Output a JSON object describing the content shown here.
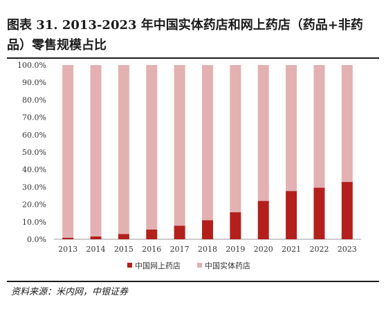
{
  "page": {
    "title": "图表 31. 2013-2023 年中国实体药店和网上药店（药品+非药品）零售规模占比",
    "source": "资料来源：米内网，中银证券"
  },
  "chart_data": {
    "type": "bar",
    "stacked": true,
    "categories": [
      "2013",
      "2014",
      "2015",
      "2016",
      "2017",
      "2018",
      "2019",
      "2020",
      "2021",
      "2022",
      "2023"
    ],
    "series": [
      {
        "name": "中国网上药店",
        "color": "#b3201c",
        "values": [
          0.9,
          1.6,
          3.0,
          5.6,
          7.8,
          10.9,
          15.5,
          22.0,
          27.7,
          29.6,
          32.9
        ]
      },
      {
        "name": "中国实体药店",
        "color": "#e3b1b1",
        "values": [
          99.1,
          98.4,
          97.0,
          94.4,
          92.2,
          89.1,
          84.5,
          78.0,
          72.3,
          70.4,
          67.1
        ]
      }
    ],
    "ylim": [
      0,
      100
    ],
    "yticks": [
      "0.0%",
      "10.0%",
      "20.0%",
      "30.0%",
      "40.0%",
      "50.0%",
      "60.0%",
      "70.0%",
      "80.0%",
      "90.0%",
      "100.0%"
    ],
    "grid": false,
    "legend_position": "bottom"
  }
}
